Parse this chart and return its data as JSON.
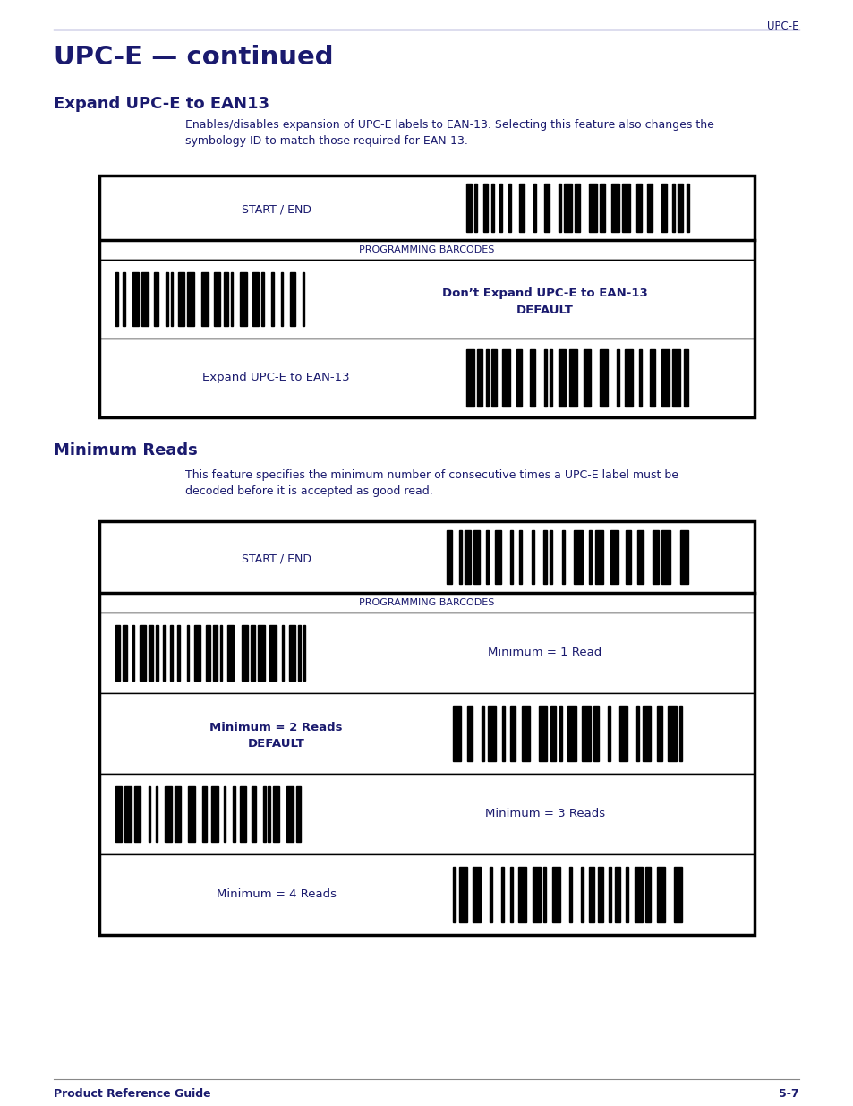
{
  "page_header_text": "UPC-E",
  "main_title": "UPC-E — continued",
  "section1_title": "Expand UPC-E to EAN13",
  "section1_desc": "Enables/disables expansion of UPC-E labels to EAN-13. Selecting this feature also changes the\nsymbology ID to match those required for EAN-13.",
  "section2_title": "Minimum Reads",
  "section2_desc": "This feature specifies the minimum number of consecutive times a UPC-E label must be\ndecoded before it is accepted as good read.",
  "prog_barcodes_label": "PROGRAMMING BARCODES",
  "start_end_label": "START / END",
  "footer_left": "Product Reference Guide",
  "footer_right": "5-7",
  "dark_blue": "#1a1a6e",
  "border_color": "#000000",
  "bg_color": "#ffffff",
  "header_line_color": "#5555aa",
  "footer_line_color": "#888888"
}
